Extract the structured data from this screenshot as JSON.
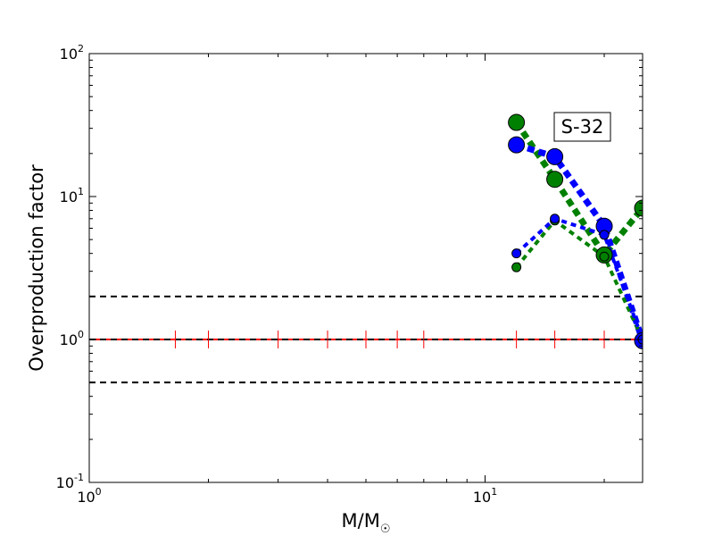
{
  "chart_data": {
    "type": "line",
    "xscale": "log",
    "yscale": "log",
    "xlim": [
      1,
      25
    ],
    "ylim": [
      0.1,
      100
    ],
    "xlabel": "M/M",
    "xlabel_sub": "☉",
    "ylabel": "Overproduction factor",
    "x_ticks": [
      {
        "value": 1,
        "base": "10",
        "exp": "0"
      },
      {
        "value": 10,
        "base": "10",
        "exp": "1"
      }
    ],
    "y_ticks": [
      {
        "value": 0.1,
        "base": "10",
        "exp": "-1"
      },
      {
        "value": 1,
        "base": "10",
        "exp": "0"
      },
      {
        "value": 10,
        "base": "10",
        "exp": "1"
      },
      {
        "value": 100,
        "base": "10",
        "exp": "2"
      }
    ],
    "grid": false,
    "annotation": "S-32",
    "reference_lines": [
      {
        "y": 2,
        "color": "#000000",
        "style": "dashed"
      },
      {
        "y": 1,
        "color": "#ff0000",
        "style": "solid"
      },
      {
        "y": 1,
        "color": "#000000",
        "style": "dashed"
      },
      {
        "y": 0.5,
        "color": "#000000",
        "style": "dashed"
      }
    ],
    "red_markers_x": [
      1.65,
      2.0,
      3.0,
      4.0,
      5.0,
      6.0,
      7.0,
      12.0,
      15.0,
      20.0,
      25.0
    ],
    "series": [
      {
        "color": "#008000",
        "line_style": "dotted-thick",
        "marker_size": "large",
        "x": [
          12,
          15,
          20,
          25
        ],
        "y": [
          33,
          13.2,
          3.9,
          8.3
        ]
      },
      {
        "color": "#0000ff",
        "line_style": "dotted-thick",
        "marker_size": "large",
        "x": [
          12,
          15,
          20,
          25
        ],
        "y": [
          23,
          19,
          6.2,
          0.98
        ]
      },
      {
        "color": "#008000",
        "line_style": "dotted-thin",
        "marker_size": "small",
        "x": [
          12,
          15,
          20,
          25
        ],
        "y": [
          3.2,
          6.8,
          3.8,
          1.0
        ]
      },
      {
        "color": "#0000ff",
        "line_style": "dotted-thin",
        "marker_size": "small",
        "x": [
          12,
          15,
          20,
          25
        ],
        "y": [
          4.0,
          7.0,
          5.4,
          1.0
        ]
      }
    ]
  }
}
